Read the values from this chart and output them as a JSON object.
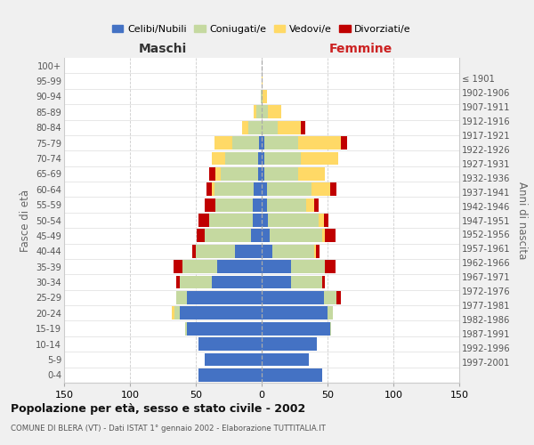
{
  "age_groups": [
    "0-4",
    "5-9",
    "10-14",
    "15-19",
    "20-24",
    "25-29",
    "30-34",
    "35-39",
    "40-44",
    "45-49",
    "50-54",
    "55-59",
    "60-64",
    "65-69",
    "70-74",
    "75-79",
    "80-84",
    "85-89",
    "90-94",
    "95-99",
    "100+"
  ],
  "birth_years": [
    "1997-2001",
    "1992-1996",
    "1987-1991",
    "1982-1986",
    "1977-1981",
    "1972-1976",
    "1967-1971",
    "1962-1966",
    "1957-1961",
    "1952-1956",
    "1947-1951",
    "1942-1946",
    "1937-1941",
    "1932-1936",
    "1927-1931",
    "1922-1926",
    "1917-1921",
    "1912-1916",
    "1907-1911",
    "1902-1906",
    "≤ 1901"
  ],
  "maschi": {
    "celibi": [
      48,
      43,
      48,
      57,
      62,
      57,
      38,
      34,
      20,
      8,
      7,
      7,
      6,
      3,
      3,
      2,
      0,
      0,
      0,
      0,
      0
    ],
    "coniugati": [
      0,
      0,
      0,
      1,
      4,
      8,
      24,
      26,
      30,
      35,
      33,
      28,
      30,
      28,
      25,
      20,
      10,
      4,
      1,
      0,
      0
    ],
    "vedovi": [
      0,
      0,
      0,
      0,
      2,
      0,
      0,
      0,
      0,
      0,
      0,
      0,
      2,
      4,
      10,
      14,
      5,
      2,
      0,
      0,
      0
    ],
    "divorziati": [
      0,
      0,
      0,
      0,
      0,
      0,
      3,
      7,
      3,
      6,
      8,
      8,
      4,
      5,
      0,
      0,
      0,
      0,
      0,
      0,
      0
    ]
  },
  "femmine": {
    "nubili": [
      46,
      36,
      42,
      52,
      50,
      47,
      22,
      22,
      8,
      6,
      5,
      4,
      4,
      2,
      2,
      2,
      0,
      0,
      0,
      0,
      0
    ],
    "coniugate": [
      0,
      0,
      0,
      1,
      4,
      10,
      24,
      26,
      32,
      40,
      38,
      30,
      34,
      26,
      28,
      26,
      12,
      5,
      1,
      0,
      0
    ],
    "vedove": [
      0,
      0,
      0,
      0,
      0,
      0,
      0,
      0,
      1,
      2,
      4,
      6,
      14,
      20,
      28,
      32,
      18,
      10,
      3,
      1,
      0
    ],
    "divorziate": [
      0,
      0,
      0,
      0,
      0,
      3,
      2,
      8,
      3,
      8,
      4,
      3,
      5,
      0,
      0,
      5,
      3,
      0,
      0,
      0,
      0
    ]
  },
  "colors": {
    "celibi": "#4472c4",
    "coniugati": "#c5d9a0",
    "vedovi": "#ffd966",
    "divorziati": "#c00000"
  },
  "xlim": 150,
  "title": "Popolazione per età, sesso e stato civile - 2002",
  "subtitle": "COMUNE DI BLERA (VT) - Dati ISTAT 1° gennaio 2002 - Elaborazione TUTTITALIA.IT",
  "ylabel_left": "Fasce di età",
  "ylabel_right": "Anni di nascita",
  "xlabel_maschi": "Maschi",
  "xlabel_femmine": "Femmine",
  "legend_labels": [
    "Celibi/Nubili",
    "Coniugati/e",
    "Vedovi/e",
    "Divorziati/e"
  ],
  "bg_color": "#f0f0f0",
  "plot_bg": "#ffffff"
}
